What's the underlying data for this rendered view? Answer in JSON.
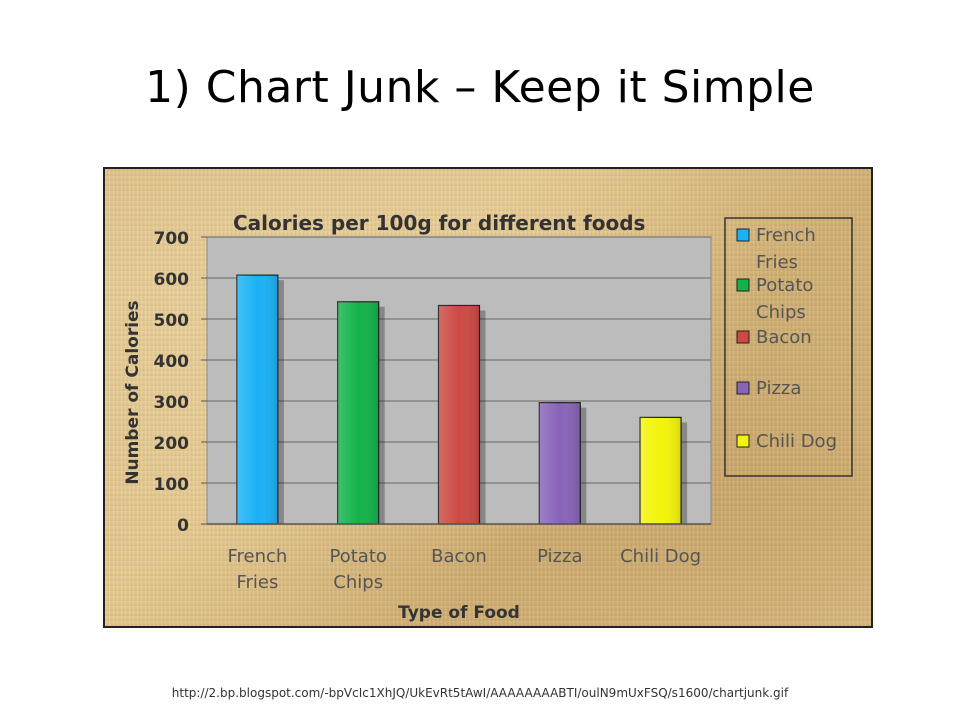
{
  "slide": {
    "title": "1) Chart Junk – Keep it Simple",
    "source_url": "http://2.bp.blogspot.com/-bpVcIc1XhJQ/UkEvRt5tAwI/AAAAAAAABTI/oulN9mUxFSQ/s1600/chartjunk.gif"
  },
  "chart_data": {
    "type": "bar",
    "title": "Calories per 100g for different foods",
    "xlabel": "Type of Food",
    "ylabel": "Number of Calories",
    "ylim": [
      0,
      700
    ],
    "yticks": [
      0,
      100,
      200,
      300,
      400,
      500,
      600,
      700
    ],
    "grid": true,
    "legend_position": "right",
    "categories": [
      "French Fries",
      "Potato Chips",
      "Bacon",
      "Pizza",
      "Chili Dog"
    ],
    "category_lines": [
      [
        "French",
        "Fries"
      ],
      [
        "Potato",
        "Chips"
      ],
      [
        "Bacon"
      ],
      [
        "Pizza"
      ],
      [
        "Chili Dog"
      ]
    ],
    "values": [
      607,
      542,
      533,
      296,
      260
    ],
    "colors": [
      "#1ab2f5",
      "#14b34a",
      "#cc4a44",
      "#8a63b8",
      "#f4f40a"
    ],
    "legend": [
      {
        "lines": [
          "French",
          "Fries"
        ]
      },
      {
        "lines": [
          "Potato",
          "Chips"
        ]
      },
      {
        "lines": [
          "Bacon"
        ]
      },
      {
        "lines": [
          "Pizza"
        ]
      },
      {
        "lines": [
          "Chili Dog"
        ]
      }
    ],
    "plot_background": "#bcbcbc",
    "gridline_color": "#7a7a7a"
  }
}
